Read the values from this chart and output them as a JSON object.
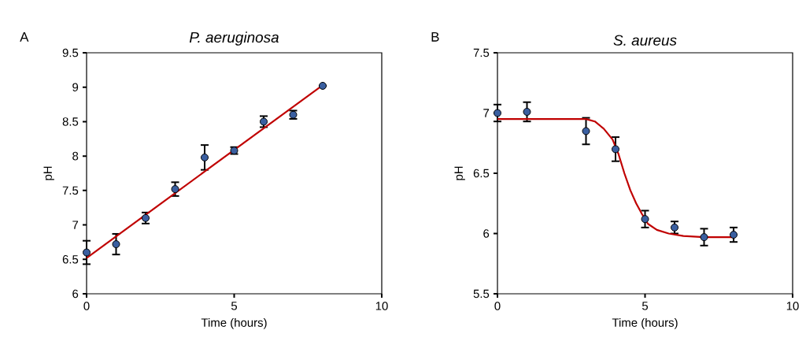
{
  "chart_data": [
    {
      "type": "scatter",
      "title": "P. aeruginosa",
      "xlabel": "Time (hours)",
      "ylabel": "pH",
      "annotations": [
        "A"
      ],
      "xlim": [
        0,
        10
      ],
      "xticks": [
        0,
        5,
        10
      ],
      "ylim": [
        6,
        9.5
      ],
      "yticks": [
        6,
        {
          "value": 6.5,
          "label": "6.5"
        },
        7,
        {
          "value": 7.5,
          "label": "7.5"
        },
        8,
        {
          "value": 8.5,
          "label": "8.5"
        },
        9,
        {
          "value": 9.5,
          "label": "9.5"
        }
      ],
      "x": [
        0,
        1,
        2,
        3,
        4,
        5,
        6,
        7,
        8
      ],
      "series": [
        {
          "marker": "circle",
          "color": "#3a5fa0",
          "values": [
            6.6,
            6.72,
            7.1,
            7.52,
            7.98,
            8.08,
            8.5,
            8.6,
            9.02
          ],
          "errors": [
            0.17,
            0.15,
            0.08,
            0.1,
            0.18,
            0.05,
            0.08,
            0.06,
            null
          ]
        },
        {
          "type": "line",
          "color": "#c00000",
          "x": [
            0,
            8
          ],
          "values": [
            6.52,
            9.03
          ]
        }
      ]
    },
    {
      "type": "scatter",
      "title": "S. aureus",
      "xlabel": "Time (hours)",
      "ylabel": "pH",
      "annotations": [
        "B"
      ],
      "xlim": [
        0,
        10
      ],
      "xticks": [
        0,
        5,
        10
      ],
      "ylim": [
        5.5,
        7.5
      ],
      "yticks": [
        {
          "value": 5.5,
          "label": "5.5"
        },
        6,
        {
          "value": 6.5,
          "label": "6.5"
        },
        7,
        {
          "value": 7.5,
          "label": "7.5"
        }
      ],
      "x": [
        0,
        1,
        3,
        4,
        5,
        6,
        7,
        8
      ],
      "series": [
        {
          "marker": "circle",
          "color": "#3a5fa0",
          "values": [
            7.0,
            7.01,
            6.85,
            6.7,
            6.12,
            6.05,
            5.97,
            5.99
          ],
          "errors": [
            0.07,
            0.08,
            0.11,
            0.1,
            0.07,
            0.05,
            0.07,
            0.06
          ]
        },
        {
          "type": "line",
          "color": "#c00000",
          "x": [
            0,
            3,
            3.3,
            3.6,
            3.9,
            4.1,
            4.3,
            4.5,
            4.7,
            4.9,
            5.1,
            5.4,
            5.8,
            6.3,
            7,
            8
          ],
          "values": [
            6.95,
            6.95,
            6.93,
            6.87,
            6.78,
            6.66,
            6.5,
            6.36,
            6.25,
            6.16,
            6.08,
            6.03,
            6.0,
            5.98,
            5.97,
            5.97
          ]
        }
      ]
    }
  ]
}
